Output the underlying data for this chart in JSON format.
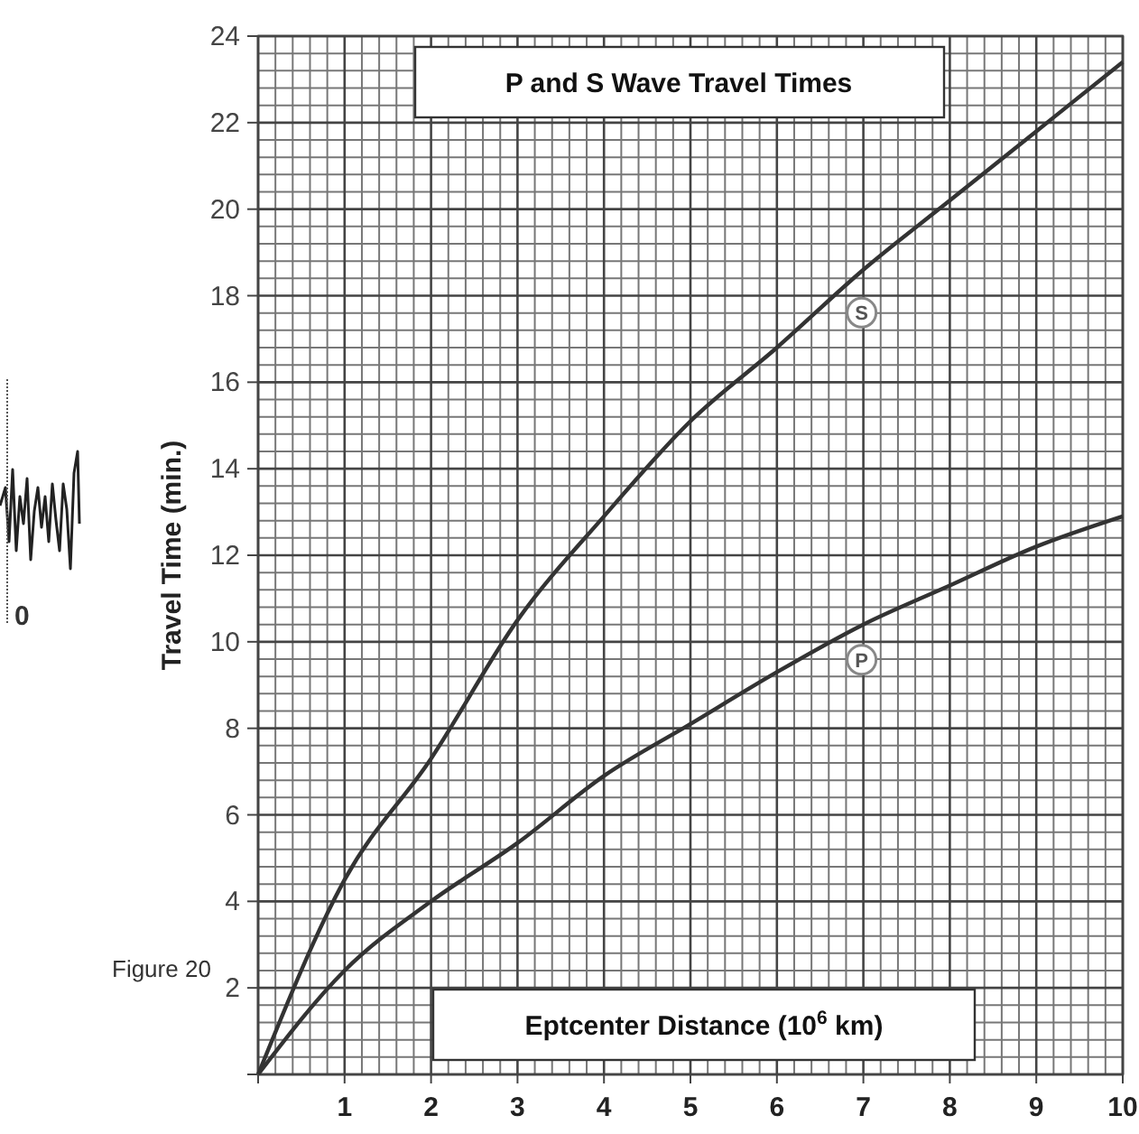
{
  "chart_data": {
    "type": "line",
    "title": "P and S Wave Travel Times",
    "xlabel": "Eptcenter Distance (10$^{6}$ km)",
    "ylabel": "Travel Time (min.)",
    "x": [
      0,
      1,
      2,
      3,
      4,
      5,
      6,
      7,
      8,
      9,
      10
    ],
    "series": [
      {
        "name": "S",
        "color": "#333333",
        "values": [
          0,
          4.5,
          7.3,
          10.5,
          12.9,
          15.1,
          16.8,
          18.6,
          20.2,
          21.8,
          23.4
        ]
      },
      {
        "name": "P",
        "color": "#333333",
        "values": [
          0,
          2.4,
          4.0,
          5.35,
          6.9,
          8.1,
          9.3,
          10.4,
          11.3,
          12.2,
          12.9
        ]
      }
    ],
    "xlim": [
      0,
      10
    ],
    "xticks": [
      {
        "value": 0,
        "label": null
      },
      1,
      2,
      3,
      4,
      5,
      6,
      7,
      8,
      9,
      10
    ],
    "ylim": [
      0,
      24
    ],
    "yticks": [
      {
        "value": 0,
        "label": null
      },
      2,
      4,
      6,
      8,
      10,
      12,
      14,
      16,
      18,
      20,
      22,
      24
    ],
    "grid": true,
    "marker": "none",
    "line_style": "solid",
    "annotations": [
      "Figure 20",
      "0"
    ]
  }
}
